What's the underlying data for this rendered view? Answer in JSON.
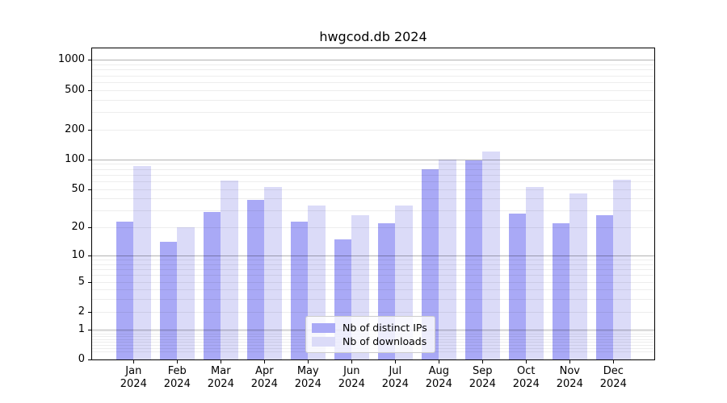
{
  "title": "hwgcod.db 2024",
  "chart_data": {
    "type": "bar",
    "title": "hwgcod.db 2024",
    "categories": [
      "Jan 2024",
      "Feb 2024",
      "Mar 2024",
      "Apr 2024",
      "May 2024",
      "Jun 2024",
      "Jul 2024",
      "Aug 2024",
      "Sep 2024",
      "Oct 2024",
      "Nov 2024",
      "Dec 2024"
    ],
    "series": [
      {
        "name": "Nb of distinct IPs",
        "color": "#a9a9f6",
        "values": [
          23,
          14,
          29,
          39,
          23,
          15,
          22,
          80,
          98,
          28,
          22,
          27
        ]
      },
      {
        "name": "Nb of downloads",
        "color": "#dbdbf8",
        "values": [
          85,
          20,
          61,
          52,
          34,
          27,
          34,
          100,
          120,
          52,
          45,
          62
        ]
      }
    ],
    "xlabel": "",
    "ylabel": "",
    "yscale": "log1p",
    "ylim": [
      0,
      1308
    ],
    "yticks": [
      0,
      1,
      2,
      5,
      10,
      20,
      50,
      100,
      200,
      500,
      1000
    ],
    "major_gridlines": [
      1,
      10,
      100,
      1000
    ],
    "minor_gridlines": [
      0.2,
      0.3,
      0.4,
      0.5,
      0.6,
      0.7,
      0.8,
      0.9,
      2,
      3,
      4,
      5,
      6,
      7,
      8,
      9,
      20,
      30,
      40,
      50,
      60,
      70,
      80,
      90,
      200,
      300,
      400,
      500,
      600,
      700,
      800,
      900
    ],
    "grid": "horizontal major+minor, drawn over bars",
    "legend_position": "lower center"
  },
  "colors": {
    "bar_distinct_ips": "#a9a9f6",
    "bar_downloads": "#dbdbf8",
    "grid_major": "rgba(0,0,0,0.30)",
    "grid_minor": "rgba(0,0,0,0.07)",
    "axis_frame": "#000000",
    "legend_border": "#cccccc"
  }
}
